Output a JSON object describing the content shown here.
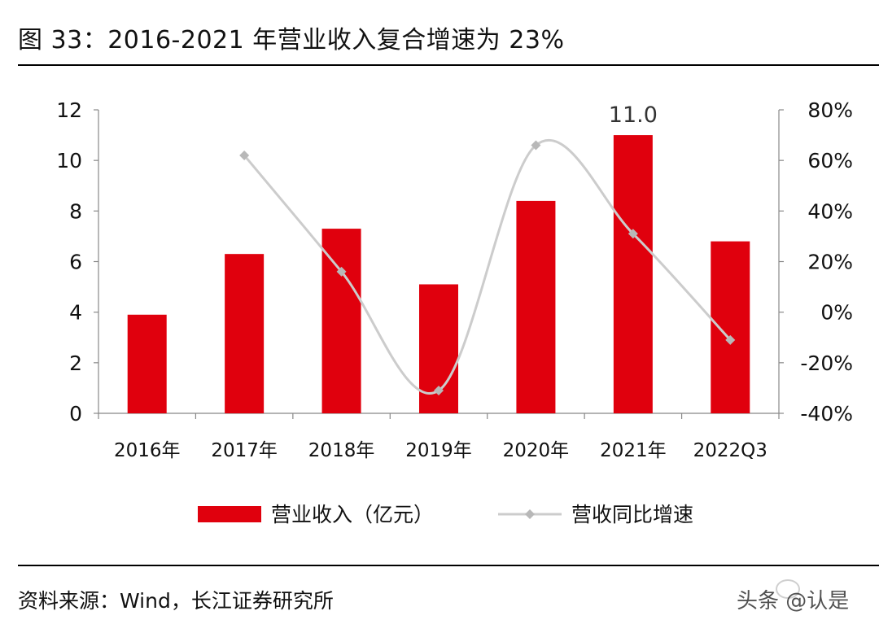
{
  "title": "图 33：2016-2021 年营业收入复合增速为 23%",
  "chart_data": {
    "type": "bar",
    "categories": [
      "2016年",
      "2017年",
      "2018年",
      "2019年",
      "2020年",
      "2021年",
      "2022Q3"
    ],
    "series": [
      {
        "name": "营业收入（亿元）",
        "type": "bar",
        "axis": "left",
        "values": [
          3.9,
          6.3,
          7.3,
          5.1,
          8.4,
          11.0,
          6.8
        ],
        "data_labels": [
          null,
          null,
          null,
          null,
          null,
          "11.0",
          null
        ],
        "color": "#e0000d"
      },
      {
        "name": "营收同比增速",
        "type": "line",
        "axis": "right",
        "values": [
          null,
          0.62,
          0.16,
          -0.31,
          0.66,
          0.31,
          -0.11
        ],
        "color": "#cccccc",
        "marker_color": "#b8b8b8"
      }
    ],
    "y_left": {
      "min": 0,
      "max": 12,
      "ticks": [
        0,
        2,
        4,
        6,
        8,
        10,
        12
      ],
      "tick_labels": [
        "0",
        "2",
        "4",
        "6",
        "8",
        "10",
        "12"
      ]
    },
    "y_right": {
      "min": -0.4,
      "max": 0.8,
      "ticks": [
        -0.4,
        -0.2,
        0,
        0.2,
        0.4,
        0.6,
        0.8
      ],
      "tick_labels": [
        "-40%",
        "-20%",
        "0%",
        "20%",
        "40%",
        "60%",
        "80%"
      ]
    },
    "legend_position": "bottom",
    "grid": false
  },
  "source": "资料来源：Wind，长江证券研究所",
  "watermark": "头条 @认是"
}
